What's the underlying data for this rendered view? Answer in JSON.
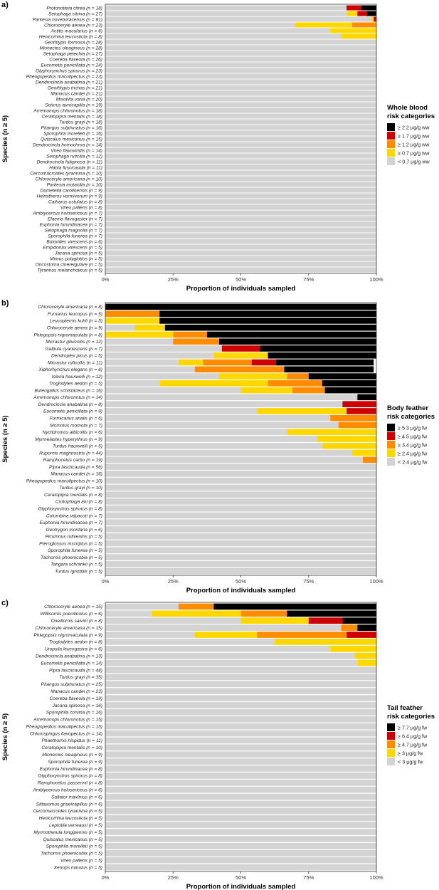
{
  "chart_data": [
    {
      "type": "bar",
      "stacked": true,
      "orientation": "horizontal",
      "panel_label": "a)",
      "xlabel": "Proportion of individuals sampled",
      "ylabel": "Species (n ≥ 5)",
      "xlim": [
        0,
        1
      ],
      "xticks": [
        "0%",
        "25%",
        "50%",
        "75%",
        "100%"
      ],
      "legend_title": [
        "Whole blood",
        "risk categories"
      ],
      "legend_position": "right",
      "categories": [
        "Protonotaria citrea (n = 18)",
        "Setophaga citrina (n = 27)",
        "Parkesia noveboracensis (n = 81)",
        "Chloroceryle aenea (n = 23)",
        "Actitis macularius (n = 6)",
        "Henicorhina leucosticta (n = 8)",
        "Geothlypis formosa (n = 28)",
        "Mionectes oleagineus (n = 28)",
        "Setophaga petechia (n = 27)",
        "Coereba flaveola (n = 26)",
        "Eucometis penicillata (n = 24)",
        "Glyphorynchus spirurus (n = 23)",
        "Pheugopedius maculipectus (n = 23)",
        "Dendrocincla anabatina (n = 21)",
        "Geothlypis trichas (n = 21)",
        "Manacus candei (n = 21)",
        "Mniotilta varia (n = 20)",
        "Seiurus aurocapilla (n = 19)",
        "Arremonops chloronotus (n = 18)",
        "Ceratopipra mentalis (n = 18)",
        "Turdus grayi (n = 18)",
        "Pitangus sulphuratus (n = 16)",
        "Sporophila morelleti (n = 16)",
        "Quiscalus mexicanus (n = 15)",
        "Dendrocincla homochroa (n = 14)",
        "Vireo flavoviridis (n = 14)",
        "Setophaga ruticilla (n = 12)",
        "Dendrocincla fuliginosa (n = 11)",
        "Habia fuscicauda (n = 11)",
        "Cercomacroides tyrannina (n = 10)",
        "Chloroceryle americana (n = 10)",
        "Parkesia motacilla (n = 10)",
        "Dumetella carolinensis (n = 9)",
        "Helmitheros vermivorum (n = 9)",
        "Catharus ustulatus (n = 8)",
        "Vireo pallens (n = 8)",
        "Amblycercus holosericeus (n = 7)",
        "Elaenia flavogaster (n = 7)",
        "Euphonia hirundinacea (n = 7)",
        "Setophaga magnolia (n = 7)",
        "Sporophila funerea (n = 7)",
        "Butorides virescens (n = 6)",
        "Empidonax virescens (n = 5)",
        "Jacana spinosa (n = 5)",
        "Mimus polyglottos (n = 5)",
        "Oncostoma cinereigulare (n = 5)",
        "Tyrannus melancholicus (n = 5)"
      ],
      "series": [
        {
          "name": "< 0.7 µg/g ww",
          "color": "#d3d3d3",
          "values": [
            0.89,
            0.89,
            0.98,
            0.7,
            0.83,
            0.87,
            1,
            1,
            1,
            1,
            1,
            1,
            1,
            1,
            1,
            1,
            1,
            1,
            1,
            1,
            1,
            1,
            1,
            1,
            1,
            1,
            1,
            1,
            1,
            1,
            1,
            1,
            1,
            1,
            1,
            1,
            1,
            1,
            1,
            1,
            1,
            1,
            1,
            1,
            1,
            1,
            1
          ]
        },
        {
          "name": "≥ 0.7 µg/g ww",
          "color": "#ffd700",
          "values": [
            0,
            0.04,
            0.01,
            0.21,
            0.17,
            0.13,
            0,
            0,
            0,
            0,
            0,
            0,
            0,
            0,
            0,
            0,
            0,
            0,
            0,
            0,
            0,
            0,
            0,
            0,
            0,
            0,
            0,
            0,
            0,
            0,
            0,
            0,
            0,
            0,
            0,
            0,
            0,
            0,
            0,
            0,
            0,
            0,
            0,
            0,
            0,
            0,
            0
          ]
        },
        {
          "name": "≥ 1.2 µg/g ww",
          "color": "#ff8c00",
          "values": [
            0,
            0,
            0,
            0.09,
            0,
            0,
            0,
            0,
            0,
            0,
            0,
            0,
            0,
            0,
            0,
            0,
            0,
            0,
            0,
            0,
            0,
            0,
            0,
            0,
            0,
            0,
            0,
            0,
            0,
            0,
            0,
            0,
            0,
            0,
            0,
            0,
            0,
            0,
            0,
            0,
            0,
            0,
            0,
            0,
            0,
            0,
            0
          ]
        },
        {
          "name": "≥ 1.7 µg/g ww",
          "color": "#cc0000",
          "values": [
            0.055,
            0.035,
            0.01,
            0,
            0,
            0,
            0,
            0,
            0,
            0,
            0,
            0,
            0,
            0,
            0,
            0,
            0,
            0,
            0,
            0,
            0,
            0,
            0,
            0,
            0,
            0,
            0,
            0,
            0,
            0,
            0,
            0,
            0,
            0,
            0,
            0,
            0,
            0,
            0,
            0,
            0,
            0,
            0,
            0,
            0,
            0,
            0
          ]
        },
        {
          "name": "≥ 2.2 µg/g ww",
          "color": "#000000",
          "values": [
            0.055,
            0.035,
            0,
            0,
            0,
            0,
            0,
            0,
            0,
            0,
            0,
            0,
            0,
            0,
            0,
            0,
            0,
            0,
            0,
            0,
            0,
            0,
            0,
            0,
            0,
            0,
            0,
            0,
            0,
            0,
            0,
            0,
            0,
            0,
            0,
            0,
            0,
            0,
            0,
            0,
            0,
            0,
            0,
            0,
            0,
            0,
            0
          ]
        }
      ],
      "legend_order": [
        "≥ 2.2 µg/g ww",
        "≥ 1.7 µg/g ww",
        "≥ 1.2 µg/g ww",
        "≥ 0.7 µg/g ww",
        "< 0.7 µg/g ww"
      ]
    },
    {
      "type": "bar",
      "stacked": true,
      "orientation": "horizontal",
      "panel_label": "b)",
      "xlabel": "Proportion of individuals sampled",
      "ylabel": "Species (n ≥ 5)",
      "xlim": [
        0,
        1
      ],
      "xticks": [
        "0%",
        "25%",
        "50%",
        "75%",
        "100%"
      ],
      "legend_title": [
        "Body feather",
        "risk categories"
      ],
      "legend_position": "right",
      "categories": [
        "Chloroceryle americana (n = 8)",
        "Furnarius leucopus (n = 5)",
        "Leucopternis kuhli (n = 5)",
        "Chloroceryle aenea (n = 9)",
        "Phlegopsis nigromaculata (n = 8)",
        "Micrastur gilvicollis (n = 12)",
        "Galbula cyanescens (n = 7)",
        "Dendroplex picus (n = 5)",
        "Micrastur ruficollis (n = 11)",
        "Xiphorhynchus elegans (n = 6)",
        "Isleria hauxwelli (n = 12)",
        "Troglodytes aedon (n = 5)",
        "Buteogallus schistaceus (n = 16)",
        "Arremonops chloronotus (n = 14)",
        "Dendrocincla anabatina (n = 8)",
        "Eucometis penicillata (n = 9)",
        "Formicarius analis (n = 6)",
        "Momotus momota (n = 7)",
        "Nyctidromus albicollis (n = 6)",
        "Myrmelastes hyperythrus (n = 9)",
        "Turdus hauxwelli (n = 5)",
        "Rupornis magnirostris (n = 44)",
        "Ramphocelus carbo (n = 19)",
        "Pipra fasciicauda (n = 56)",
        "Manacus candei (n = 16)",
        "Pheugopedius maculipectus (n = 10)",
        "Turdus grayi (n = 10)",
        "Ceratopipra mentalis (n = 8)",
        "Crotophaga ani (n = 8)",
        "Glyphorynchus spirurus (n = 8)",
        "Columbina talpacoti (n = 7)",
        "Euphonia hirundinacea (n = 7)",
        "Geotrygon montana (n = 6)",
        "Picumnus rufiventris (n = 5)",
        "Pteroglossus inscriptus (n = 5)",
        "Sporophila funerea (n = 5)",
        "Tachornis phoenicobia (n = 5)",
        "Tangara schrankii (n = 5)",
        "Turdus ignobilis (n = 5)"
      ],
      "series": [
        {
          "name": "< 2.4 µg/g fw",
          "color": "#d3d3d3",
          "values": [
            0,
            0,
            0,
            0.11,
            0,
            0.25,
            0.43,
            0.4,
            0.27,
            0.33,
            0.42,
            0.2,
            0.5,
            0.93,
            0.875,
            0.56,
            0.83,
            0.86,
            0.67,
            0.78,
            0.8,
            0.91,
            0.95,
            1,
            1,
            1,
            1,
            1,
            1,
            1,
            1,
            1,
            1,
            1,
            1,
            1,
            1,
            1,
            1
          ]
        },
        {
          "name": "≥ 2.4 µg/g fw",
          "color": "#ffd700",
          "values": [
            0,
            0,
            0.2,
            0.11,
            0.25,
            0,
            0,
            0.2,
            0.09,
            0,
            0.25,
            0.4,
            0.19,
            0,
            0,
            0.33,
            0,
            0,
            0.33,
            0.22,
            0.2,
            0.09,
            0,
            0,
            0,
            0,
            0,
            0,
            0,
            0,
            0,
            0,
            0,
            0,
            0,
            0,
            0,
            0,
            0
          ]
        },
        {
          "name": "≥ 3.4 µg/g fw",
          "color": "#ff8c00",
          "values": [
            0,
            0.2,
            0,
            0,
            0.125,
            0.17,
            0,
            0,
            0.18,
            0.33,
            0.08,
            0.2,
            0.12,
            0,
            0,
            0,
            0.17,
            0.14,
            0,
            0,
            0,
            0,
            0.05,
            0,
            0,
            0,
            0,
            0,
            0,
            0,
            0,
            0,
            0,
            0,
            0,
            0,
            0,
            0,
            0
          ]
        },
        {
          "name": "≥ 4.5 µg/g fw",
          "color": "#cc0000",
          "values": [
            0,
            0,
            0,
            0,
            0,
            0,
            0.14,
            0,
            0.09,
            0,
            0,
            0,
            0,
            0,
            0.125,
            0.11,
            0,
            0,
            0,
            0,
            0,
            0,
            0,
            0,
            0,
            0,
            0,
            0,
            0,
            0,
            0,
            0,
            0,
            0,
            0,
            0,
            0,
            0,
            0
          ]
        },
        {
          "name": "≥ 5.3 µg/g fw",
          "color": "#000000",
          "values": [
            1,
            0.8,
            0.8,
            0.78,
            0.625,
            0.58,
            0.43,
            0.4,
            0.36,
            0.33,
            0.25,
            0.2,
            0.19,
            0.07,
            0,
            0,
            0,
            0,
            0,
            0,
            0,
            0,
            0,
            0,
            0,
            0,
            0,
            0,
            0,
            0,
            0,
            0,
            0,
            0,
            0,
            0,
            0,
            0,
            0
          ]
        }
      ],
      "legend_order": [
        "≥ 5.3 µg/g fw",
        "≥ 4.5 µg/g fw",
        "≥ 3.4 µg/g fw",
        "≥ 2.4 µg/g fw",
        "< 2.4 µg/g fw"
      ]
    },
    {
      "type": "bar",
      "stacked": true,
      "orientation": "horizontal",
      "panel_label": "c)",
      "xlabel": "Proportion of individuals sampled",
      "ylabel": "Species (n ≥ 5)",
      "xlim": [
        0,
        1
      ],
      "xticks": [
        "0%",
        "25%",
        "50%",
        "75%",
        "100%"
      ],
      "legend_title": [
        "Tail feather",
        "risk categories"
      ],
      "legend_position": "right",
      "categories": [
        "Chloroceryle aenea (n = 15)",
        "Willisornis poecilinotus (n = 6)",
        "Oneillornis salvini (n = 8)",
        "Chloroceryle americana (n = 15)",
        "Phlegopsis nigromaculata (n = 9)",
        "Troglodytes aedon (n = 8)",
        "Uropsila leucogastra (n = 6)",
        "Dendrocincla anabatina (n = 13)",
        "Eucometis penicillata (n = 14)",
        "Pipra fasciicauda (n = 48)",
        "Turdus grayi (n = 35)",
        "Pitangus sulphuratus (n = 25)",
        "Manacus candei (n = 23)",
        "Coereba flaveola (n = 19)",
        "Jacana spinosa (n = 16)",
        "Sporophila corvina (n = 16)",
        "Arremonops chloronotus (n = 15)",
        "Pheugopedius maculipectus (n = 15)",
        "Chlorospingus flavopectus (n = 14)",
        "Phaethornis hispidus (n = 11)",
        "Ceratopipra mentalis (n = 10)",
        "Mionectes oleagineus (n = 9)",
        "Sporophila funerea (n = 9)",
        "Euphonia hirundinacea (n = 8)",
        "Glyphorynchus spirurus (n = 8)",
        "Ramphocelus passerinii (n = 8)",
        "Amblycercus holosericeus (n = 6)",
        "Saltator maximus (n = 6)",
        "Sittasomus griseicapillus (n = 6)",
        "Cercomacroides tyrannina (n = 5)",
        "Henicorhina leucosticta (n = 5)",
        "Leptotila verreauxi (n = 5)",
        "Myrmotherula longipennis (n = 5)",
        "Quiscalus mexicanus (n = 5)",
        "Sporophila morelleti (n = 5)",
        "Tachornis phoenicobia (n = 5)",
        "Vireo pallens (n = 5)",
        "Xenops minutus (n = 5)"
      ],
      "series": [
        {
          "name": "< 3 µg/g fw",
          "color": "#d3d3d3",
          "values": [
            0.27,
            0.17,
            0.5,
            0.87,
            0.33,
            0.625,
            0.83,
            0.92,
            0.93,
            1,
            1,
            1,
            1,
            1,
            1,
            1,
            1,
            1,
            1,
            1,
            1,
            1,
            1,
            1,
            1,
            1,
            1,
            1,
            1,
            1,
            1,
            1,
            1,
            1,
            1,
            1,
            1,
            1
          ]
        },
        {
          "name": "≥ 3 µg/g fw",
          "color": "#ffd700",
          "values": [
            0,
            0.33,
            0.25,
            0,
            0.23,
            0.375,
            0.17,
            0.08,
            0.07,
            0,
            0,
            0,
            0,
            0,
            0,
            0,
            0,
            0,
            0,
            0,
            0,
            0,
            0,
            0,
            0,
            0,
            0,
            0,
            0,
            0,
            0,
            0,
            0,
            0,
            0,
            0,
            0,
            0
          ]
        },
        {
          "name": "≥ 4.7 µg/g fw",
          "color": "#ff8c00",
          "values": [
            0.13,
            0.17,
            0,
            0.06,
            0.33,
            0,
            0,
            0,
            0,
            0,
            0,
            0,
            0,
            0,
            0,
            0,
            0,
            0,
            0,
            0,
            0,
            0,
            0,
            0,
            0,
            0,
            0,
            0,
            0,
            0,
            0,
            0,
            0,
            0,
            0,
            0,
            0,
            0
          ]
        },
        {
          "name": "≥ 6.4 µg/g fw",
          "color": "#cc0000",
          "values": [
            0,
            0,
            0.125,
            0,
            0.11,
            0,
            0,
            0,
            0,
            0,
            0,
            0,
            0,
            0,
            0,
            0,
            0,
            0,
            0,
            0,
            0,
            0,
            0,
            0,
            0,
            0,
            0,
            0,
            0,
            0,
            0,
            0,
            0,
            0,
            0,
            0,
            0,
            0
          ]
        },
        {
          "name": "≥ 7.7 µg/g fw",
          "color": "#000000",
          "values": [
            0.6,
            0.33,
            0.125,
            0.07,
            0,
            0,
            0,
            0,
            0,
            0,
            0,
            0,
            0,
            0,
            0,
            0,
            0,
            0,
            0,
            0,
            0,
            0,
            0,
            0,
            0,
            0,
            0,
            0,
            0,
            0,
            0,
            0,
            0,
            0,
            0,
            0,
            0,
            0
          ]
        }
      ],
      "legend_order": [
        "≥ 7.7 µg/g fw",
        "≥ 6.4 µg/g fw",
        "≥ 4.7 µg/g fw",
        "≥ 3 µg/g fw",
        "< 3 µg/g fw"
      ]
    }
  ]
}
